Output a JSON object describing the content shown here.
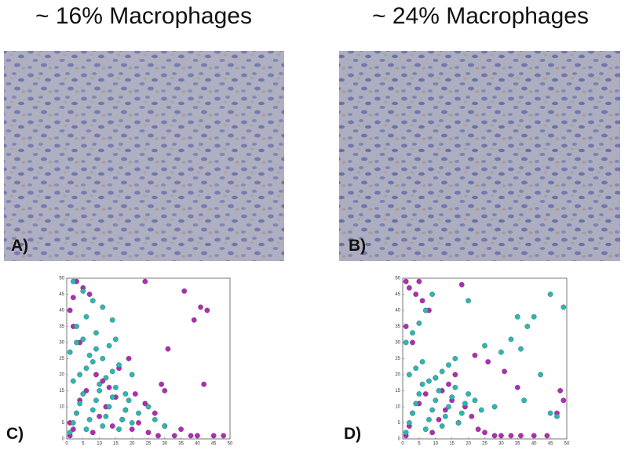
{
  "figure": {
    "titles": [
      "~ 16% Macrophages",
      "~ 24% Macrophages"
    ],
    "image_labels": [
      "A)",
      "B)"
    ]
  },
  "chart_data": [
    {
      "type": "scatter",
      "label": "C)",
      "xlim": [
        0,
        50
      ],
      "ylim": [
        0,
        50
      ],
      "xticks": [
        0,
        5,
        10,
        15,
        20,
        25,
        30,
        35,
        40,
        45,
        50
      ],
      "yticks": [
        0,
        5,
        10,
        15,
        20,
        25,
        30,
        35,
        40,
        45,
        50
      ],
      "series": [
        {
          "color": "#b22bb5",
          "x": [
            1,
            2,
            1,
            3,
            4,
            6,
            8,
            10,
            12,
            14,
            15,
            17,
            18,
            20,
            22,
            25,
            28,
            30,
            33,
            35,
            38,
            40,
            42,
            45,
            48,
            3,
            5,
            7,
            2,
            1,
            9,
            11,
            13,
            16,
            19,
            21,
            24,
            27,
            29,
            31,
            43,
            41,
            39,
            24,
            2,
            4,
            30,
            36
          ],
          "y": [
            1,
            3,
            5,
            8,
            12,
            15,
            2,
            7,
            10,
            4,
            13,
            6,
            9,
            3,
            5,
            2,
            1,
            4,
            1,
            3,
            1,
            1,
            17,
            1,
            1,
            49,
            47,
            45,
            44,
            40,
            20,
            18,
            16,
            22,
            25,
            14,
            11,
            8,
            17,
            28,
            40,
            41,
            37,
            49,
            35,
            30,
            15,
            46
          ]
        },
        {
          "color": "#2ab8b2",
          "x": [
            1,
            2,
            3,
            4,
            5,
            6,
            7,
            8,
            9,
            10,
            11,
            12,
            13,
            14,
            15,
            16,
            17,
            18,
            19,
            20,
            2,
            4,
            6,
            8,
            10,
            12,
            14,
            16,
            18,
            22,
            1,
            3,
            5,
            7,
            9,
            11,
            13,
            15,
            25,
            27,
            2,
            5,
            8,
            11,
            14,
            20,
            3,
            6,
            9,
            30
          ],
          "y": [
            2,
            5,
            8,
            11,
            14,
            3,
            6,
            9,
            12,
            15,
            4,
            7,
            10,
            13,
            16,
            3,
            6,
            9,
            12,
            5,
            18,
            20,
            22,
            24,
            17,
            19,
            21,
            23,
            14,
            8,
            27,
            30,
            31,
            26,
            28,
            25,
            29,
            31,
            10,
            6,
            49,
            46,
            43,
            41,
            37,
            20,
            35,
            38,
            33,
            4
          ]
        }
      ]
    },
    {
      "type": "scatter",
      "label": "D)",
      "xlim": [
        0,
        50
      ],
      "ylim": [
        0,
        50
      ],
      "xticks": [
        0,
        5,
        10,
        15,
        20,
        25,
        30,
        35,
        40,
        45,
        50
      ],
      "yticks": [
        0,
        5,
        10,
        15,
        20,
        25,
        30,
        35,
        40,
        45,
        50
      ],
      "series": [
        {
          "color": "#b22bb5",
          "x": [
            1,
            2,
            3,
            5,
            7,
            9,
            11,
            13,
            15,
            17,
            19,
            21,
            23,
            25,
            28,
            30,
            33,
            36,
            40,
            44,
            48,
            49,
            47,
            1,
            2,
            4,
            6,
            8,
            18,
            22,
            26,
            31,
            16,
            14,
            12,
            10,
            3,
            1,
            5,
            35
          ],
          "y": [
            1,
            4,
            8,
            11,
            14,
            2,
            6,
            9,
            12,
            5,
            10,
            7,
            3,
            2,
            1,
            1,
            1,
            1,
            1,
            1,
            15,
            12,
            8,
            49,
            47,
            45,
            43,
            40,
            48,
            26,
            24,
            21,
            20,
            17,
            15,
            19,
            30,
            35,
            49,
            16
          ]
        },
        {
          "color": "#2ab8b2",
          "x": [
            1,
            2,
            3,
            4,
            5,
            6,
            7,
            8,
            9,
            10,
            11,
            12,
            13,
            14,
            15,
            16,
            17,
            18,
            19,
            20,
            2,
            4,
            6,
            8,
            10,
            12,
            14,
            16,
            22,
            24,
            1,
            3,
            5,
            7,
            9,
            30,
            33,
            36,
            40,
            45,
            49,
            42,
            38,
            35,
            28,
            25,
            20,
            45,
            47,
            37
          ],
          "y": [
            2,
            5,
            8,
            11,
            14,
            17,
            3,
            6,
            9,
            12,
            15,
            4,
            7,
            10,
            13,
            16,
            5,
            8,
            11,
            14,
            20,
            22,
            24,
            18,
            19,
            21,
            23,
            25,
            12,
            9,
            30,
            33,
            36,
            40,
            45,
            27,
            31,
            28,
            38,
            45,
            41,
            20,
            35,
            38,
            10,
            29,
            43,
            8,
            7,
            12
          ]
        }
      ]
    }
  ]
}
